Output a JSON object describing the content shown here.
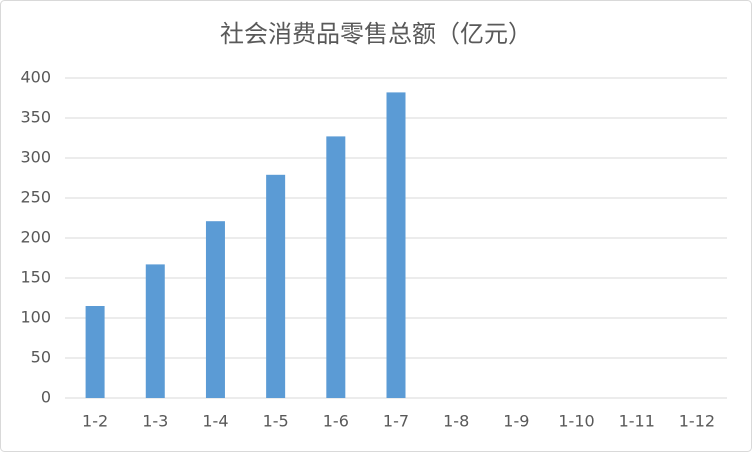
{
  "chart_data": {
    "type": "bar",
    "title": "社会消费品零售总额（亿元）",
    "categories": [
      "1-2",
      "1-3",
      "1-4",
      "1-5",
      "1-6",
      "1-7",
      "1-8",
      "1-9",
      "1-10",
      "1-11",
      "1-12"
    ],
    "values": [
      115,
      167,
      221,
      279,
      327,
      382,
      null,
      null,
      null,
      null,
      null
    ],
    "color": "#5b9bd5",
    "ylim": [
      0,
      400
    ],
    "yticks": [
      0,
      50,
      100,
      150,
      200,
      250,
      300,
      350,
      400
    ],
    "grid": true
  }
}
